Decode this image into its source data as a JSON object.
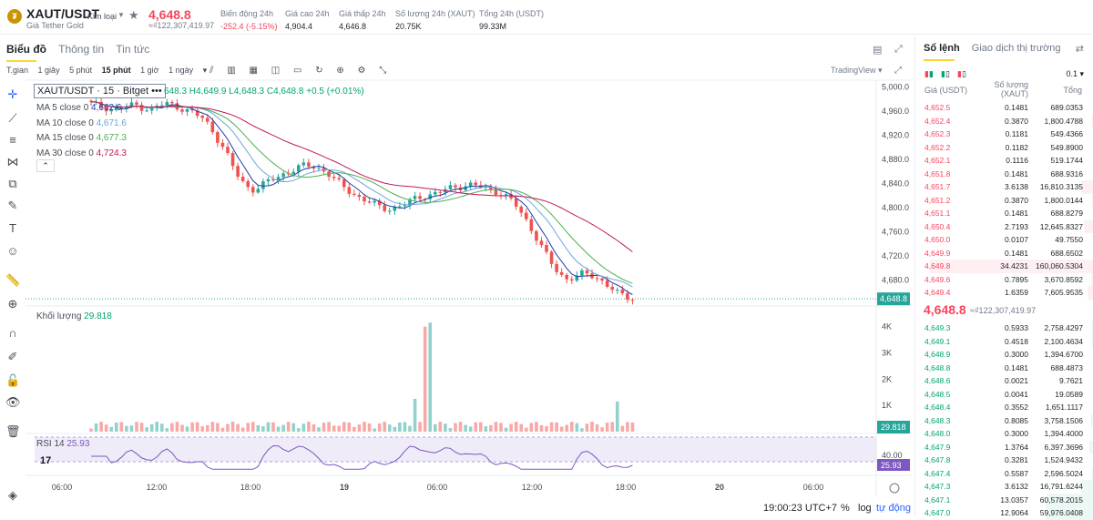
{
  "header": {
    "symbol": "XAUT/USDT",
    "symbol_sub": "Giá Tether Gold",
    "tag": "Kim loại",
    "price": "4,648.8",
    "price_sub": "≈₫122,307,419.97",
    "stats": [
      {
        "label": "Biến động 24h",
        "value": "-252.4 (-5.15%)",
        "color": "red"
      },
      {
        "label": "Giá cao 24h",
        "value": "4,904.4",
        "color": ""
      },
      {
        "label": "Giá thấp 24h",
        "value": "4,646.8",
        "color": ""
      },
      {
        "label": "Số lượng 24h (XAUT)",
        "value": "20.75K",
        "color": ""
      },
      {
        "label": "Tổng 24h (USDT)",
        "value": "99.33M",
        "color": ""
      }
    ]
  },
  "chart_tabs": [
    "Biểu đồ",
    "Thông tin",
    "Tin tức"
  ],
  "toolbar": {
    "intervals": [
      "T.gian",
      "1 giây",
      "5 phút",
      "15 phút",
      "1 giờ",
      "1 ngày"
    ],
    "active_interval": "15 phút",
    "view": "TradingView ▾"
  },
  "legend": {
    "title": "XAUT/USDT · 15 · Bitget",
    "ohlc": "648.3 H4,649.9 L4,648.3 C4,648.8 +0.5 (+0.01%)",
    "ma": [
      {
        "label": "MA 5 close 0",
        "value": "4,662.6",
        "color": "#1f3fa6"
      },
      {
        "label": "MA 10 close 0",
        "value": "4,671.6",
        "color": "#6aa6d8"
      },
      {
        "label": "MA 15 close 0",
        "value": "4,677.3",
        "color": "#4caf50"
      },
      {
        "label": "MA 30 close 0",
        "value": "4,724.3",
        "color": "#c2185b"
      }
    ],
    "volume_label": "Khối lượng",
    "volume_value": "29.818",
    "rsi_label": "RSI 14",
    "rsi_value": "25.93"
  },
  "chart_data": {
    "type": "candlestick",
    "price_axis": [
      "5,000.0",
      "4,960.0",
      "4,920.0",
      "4,880.0",
      "4,840.0",
      "4,800.0",
      "4,760.0",
      "4,720.0",
      "4,680.0"
    ],
    "price_ylim": [
      4640,
      5005
    ],
    "current_price_label": "4,648.8",
    "volume_axis": [
      "4K",
      "3K",
      "2K",
      "1K"
    ],
    "volume_current": "29.818",
    "rsi_axis": "40.00",
    "rsi_current": "25.93",
    "time_axis": [
      "06:00",
      "12:00",
      "18:00",
      "19",
      "06:00",
      "12:00",
      "18:00",
      "20",
      "06:00"
    ],
    "close_path": [
      4972,
      4968,
      4966,
      4962,
      4964,
      4968,
      4970,
      4966,
      4962,
      4968,
      4972,
      4970,
      4966,
      4960,
      4955,
      4948,
      4935,
      4915,
      4895,
      4870,
      4848,
      4835,
      4830,
      4836,
      4844,
      4850,
      4856,
      4862,
      4866,
      4870,
      4868,
      4864,
      4856,
      4844,
      4834,
      4826,
      4818,
      4812,
      4806,
      4800,
      4798,
      4800,
      4804,
      4810,
      4816,
      4820,
      4822,
      4826,
      4830,
      4834,
      4836,
      4838,
      4836,
      4832,
      4828,
      4826,
      4818,
      4808,
      4790,
      4772,
      4752,
      4730,
      4708,
      4690,
      4682,
      4686,
      4690,
      4688,
      4684,
      4678,
      4670,
      4658,
      4650,
      4649
    ],
    "volume_spikes": [
      {
        "i": 45,
        "v": 4000
      },
      {
        "i": 46,
        "v": 4150
      },
      {
        "i": 44,
        "v": 1250
      },
      {
        "i": 71,
        "v": 1150
      }
    ]
  },
  "bottom": {
    "time": "19:00:23 UTC+7",
    "percent": "%",
    "log": "log",
    "auto": "tự động"
  },
  "orderbook": {
    "tabs": [
      "Sổ lệnh",
      "Giao dịch thị trường"
    ],
    "tick": "0.1 ▾",
    "head_price": "Giá (USDT)",
    "head_qty": "Số lượng (XAUT)",
    "head_total": "Tổng",
    "asks": [
      [
        "4,652.5",
        "0.1481",
        "689.0353"
      ],
      [
        "4,652.4",
        "0.3870",
        "1,800.4788"
      ],
      [
        "4,652.3",
        "0.1181",
        "549.4366"
      ],
      [
        "4,652.2",
        "0.1182",
        "549.8900"
      ],
      [
        "4,652.1",
        "0.1116",
        "519.1744"
      ],
      [
        "4,651.8",
        "0.1481",
        "688.9316"
      ],
      [
        "4,651.7",
        "3.6138",
        "16,810.3135"
      ],
      [
        "4,651.2",
        "0.3870",
        "1,800.0144"
      ],
      [
        "4,651.1",
        "0.1481",
        "688.8279"
      ],
      [
        "4,650.4",
        "2.7193",
        "12,645.8327"
      ],
      [
        "4,650.0",
        "0.0107",
        "49.7550"
      ],
      [
        "4,649.9",
        "0.1481",
        "688.6502"
      ],
      [
        "4,649.8",
        "34.4231",
        "160,060.5304"
      ],
      [
        "4,649.6",
        "0.7895",
        "3,670.8592"
      ],
      [
        "4,649.4",
        "1.6359",
        "7,605.9535"
      ]
    ],
    "mid_price": "4,648.8",
    "mid_sub": "≈₫122,307,419.97",
    "bids": [
      [
        "4,649.3",
        "0.5933",
        "2,758.4297"
      ],
      [
        "4,649.1",
        "0.4518",
        "2,100.4634"
      ],
      [
        "4,648.9",
        "0.3000",
        "1,394.6700"
      ],
      [
        "4,648.8",
        "0.1481",
        "688.4873"
      ],
      [
        "4,648.6",
        "0.0021",
        "9.7621"
      ],
      [
        "4,648.5",
        "0.0041",
        "19.0589"
      ],
      [
        "4,648.4",
        "0.3552",
        "1,651.1117"
      ],
      [
        "4,648.3",
        "0.8085",
        "3,758.1506"
      ],
      [
        "4,648.0",
        "0.3000",
        "1,394.4000"
      ],
      [
        "4,647.9",
        "1.3764",
        "6,397.3696"
      ],
      [
        "4,647.8",
        "0.3281",
        "1,524.9432"
      ],
      [
        "4,647.4",
        "0.5587",
        "2,596.5024"
      ],
      [
        "4,647.3",
        "3.6132",
        "16,791.6244"
      ],
      [
        "4,647.1",
        "13.0357",
        "60,578.2015"
      ],
      [
        "4,647.0",
        "12.9064",
        "59,976.0408"
      ]
    ]
  }
}
